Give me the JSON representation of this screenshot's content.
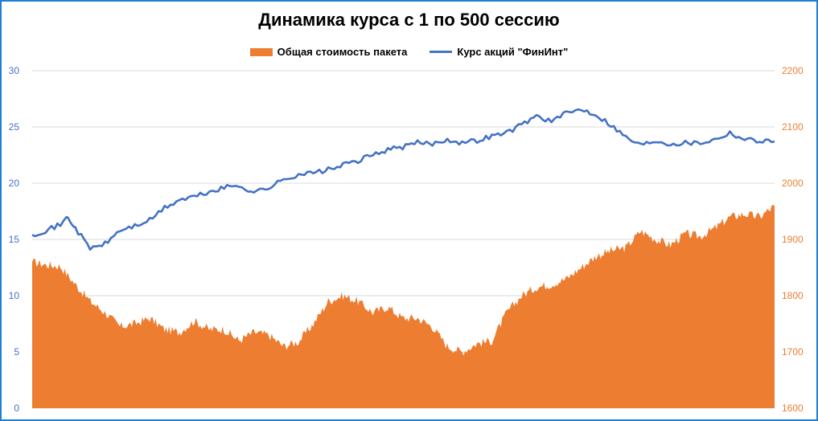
{
  "chart_data": {
    "type": "area+line",
    "title": "Динамика курса с 1 по 500 сессию",
    "legend_position": "top",
    "grid": true,
    "y_left": {
      "min": 0,
      "max": 30,
      "ticks": [
        "0",
        "5",
        "10",
        "15",
        "20",
        "25",
        "30"
      ]
    },
    "y_right": {
      "min": 1600,
      "max": 2200,
      "ticks": [
        "1600",
        "1700",
        "1800",
        "1900",
        "2000",
        "2100",
        "2200"
      ]
    },
    "x_sessions": [
      1,
      500
    ],
    "series": [
      {
        "name": "Общая стоимость пакета",
        "type": "area",
        "axis": "right",
        "color": "#ed7d31",
        "x": [
          1,
          10,
          20,
          30,
          40,
          50,
          60,
          70,
          80,
          90,
          100,
          110,
          120,
          130,
          140,
          150,
          160,
          170,
          180,
          190,
          200,
          210,
          220,
          230,
          240,
          250,
          260,
          270,
          280,
          290,
          300,
          310,
          320,
          330,
          340,
          350,
          360,
          370,
          380,
          390,
          400,
          410,
          420,
          430,
          440,
          450,
          460,
          470,
          480,
          490,
          500
        ],
        "values": [
          1860,
          1855,
          1852,
          1820,
          1790,
          1770,
          1745,
          1750,
          1760,
          1740,
          1735,
          1755,
          1740,
          1740,
          1720,
          1735,
          1730,
          1710,
          1718,
          1750,
          1790,
          1800,
          1790,
          1770,
          1780,
          1760,
          1760,
          1745,
          1710,
          1700,
          1715,
          1720,
          1770,
          1800,
          1815,
          1820,
          1830,
          1850,
          1870,
          1880,
          1885,
          1915,
          1900,
          1890,
          1910,
          1905,
          1920,
          1940,
          1945,
          1940,
          1960
        ]
      },
      {
        "name": "Курс акций \"ФинИнт\"",
        "type": "line",
        "axis": "left",
        "color": "#4472c4",
        "x": [
          1,
          10,
          20,
          25,
          30,
          40,
          50,
          60,
          70,
          80,
          90,
          100,
          110,
          120,
          130,
          140,
          150,
          160,
          170,
          180,
          190,
          200,
          210,
          220,
          230,
          240,
          250,
          260,
          270,
          280,
          290,
          300,
          310,
          320,
          330,
          340,
          350,
          360,
          370,
          380,
          390,
          400,
          410,
          420,
          430,
          440,
          450,
          460,
          470,
          480,
          490,
          500
        ],
        "values": [
          15.4,
          15.8,
          16.3,
          17.0,
          16.0,
          14.2,
          14.6,
          15.8,
          16.2,
          16.7,
          17.8,
          18.5,
          18.8,
          19.2,
          19.6,
          19.8,
          19.2,
          19.6,
          20.3,
          20.8,
          20.9,
          21.2,
          21.6,
          22.0,
          22.5,
          23.0,
          23.2,
          23.6,
          23.5,
          23.9,
          23.6,
          23.8,
          24.2,
          24.5,
          25.2,
          26.0,
          25.5,
          26.2,
          26.6,
          26.1,
          25.2,
          24.1,
          23.4,
          23.8,
          23.5,
          23.6,
          23.6,
          23.9,
          24.5,
          23.9,
          23.8,
          23.7
        ]
      }
    ]
  }
}
